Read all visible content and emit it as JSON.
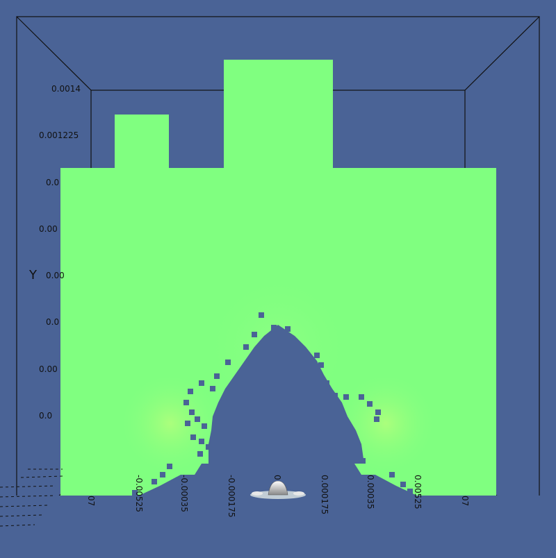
{
  "view": {
    "background": "#4a6396",
    "field_color": "#80ff80",
    "field_highlight": "#b6ff7a",
    "hole_color": "#4a6396"
  },
  "axes": {
    "y_title": "Y",
    "y_ticks": [
      "0.0014",
      "0.001225",
      "0.0",
      "0.00",
      "0.0",
      "0.00",
      "0.0",
      "0.00"
    ],
    "x_ticks": [
      "07",
      "-0.00525",
      "-0.00035",
      "-0.000175",
      "0",
      "0.000175",
      "0.00035",
      "0.00525",
      "07"
    ]
  },
  "orientation_widget": {
    "icon": "3d-glyph-icon"
  }
}
